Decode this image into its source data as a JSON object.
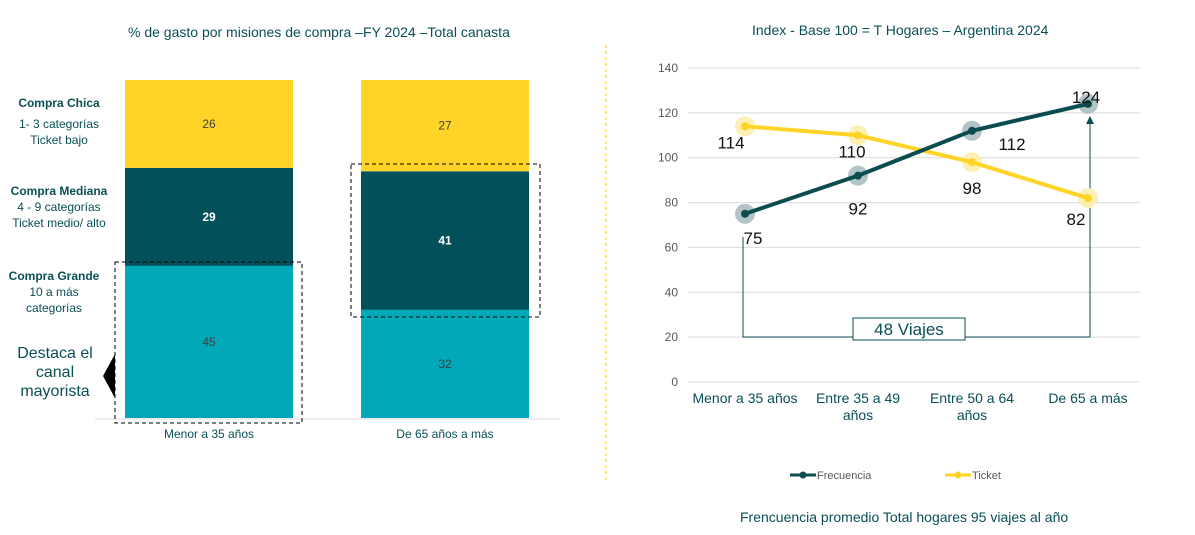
{
  "chart_data": [
    {
      "type": "bar",
      "stacked": true,
      "title": "% de gasto por misiones de compra –FY 2024 –Total canasta",
      "categories": [
        "Menor a 35 años",
        "De 65 años a más"
      ],
      "series": [
        {
          "name": "Compra Grande",
          "color": "#00a8b8",
          "values": [
            45,
            32
          ]
        },
        {
          "name": "Compra Mediana",
          "color": "#01505a",
          "values": [
            29,
            41
          ]
        },
        {
          "name": "Compra Chica",
          "color": "#ffd426",
          "values": [
            26,
            27
          ]
        }
      ],
      "ylim": [
        0,
        100
      ],
      "highlighted": [
        "Compra Grande – Menor a 35 años",
        "Compra Mediana – De 65 años a más"
      ]
    },
    {
      "type": "line",
      "title": "Index -  Base 100 = T Hogares – Argentina 2024",
      "categories": [
        "Menor a 35 años",
        "Entre 35 a 49 años",
        "Entre 50 a 64 años",
        "De 65 a más"
      ],
      "series": [
        {
          "name": "Frecuencia",
          "color": "#0b4d4f",
          "values": [
            75,
            92,
            112,
            124
          ]
        },
        {
          "name": "Ticket",
          "color": "#ffd426",
          "values": [
            114,
            110,
            98,
            82
          ]
        }
      ],
      "ylim": [
        0,
        140
      ],
      "yticks": [
        0,
        20,
        40,
        60,
        80,
        100,
        120,
        140
      ],
      "grid": true,
      "legend": "bottom",
      "annotation": "48 Viajes"
    }
  ],
  "segments": [
    {
      "label": "Compra Chica",
      "desc": "1- 3 categorías\nTicket bajo"
    },
    {
      "label": "Compra Mediana",
      "desc": "4 - 9 categorías\nTicket medio/ alto"
    },
    {
      "label": "Compra Grande",
      "desc": "10 a más\ncategorías"
    }
  ],
  "callout": "Destaca el canal mayorista",
  "footer": "Frencuencia promedio Total hogares 95 viajes al año",
  "colors": {
    "text": "#0a4f55",
    "divider": "#ffd426"
  }
}
